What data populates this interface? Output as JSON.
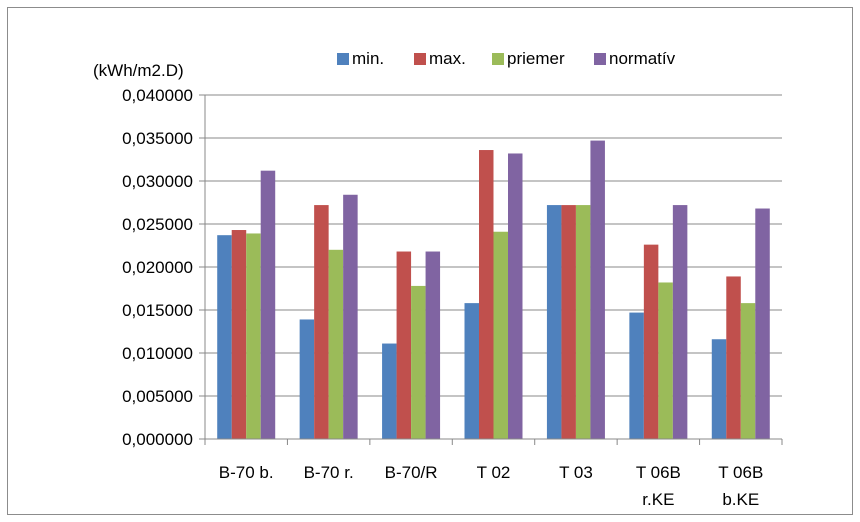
{
  "chart_data": {
    "type": "bar",
    "title": "",
    "xlabel": "",
    "ylabel": "(kWh/m2.D)",
    "ylim": [
      0,
      0.04
    ],
    "yticks": [
      "0,000000",
      "0,005000",
      "0,010000",
      "0,015000",
      "0,020000",
      "0,025000",
      "0,030000",
      "0,035000",
      "0,040000"
    ],
    "grid": true,
    "legend_position": "top",
    "categories": [
      [
        "B-70 b."
      ],
      [
        "B-70 r."
      ],
      [
        "B-70/R"
      ],
      [
        "T 02"
      ],
      [
        "T 03"
      ],
      [
        "T 06B",
        "r.KE"
      ],
      [
        "T 06B",
        "b.KE"
      ]
    ],
    "series": [
      {
        "name": "min.",
        "color": "#4f81bd",
        "values": [
          0.0237,
          0.0139,
          0.0111,
          0.0158,
          0.0272,
          0.0147,
          0.0116
        ]
      },
      {
        "name": "max.",
        "color": "#c0504d",
        "values": [
          0.0243,
          0.0272,
          0.0218,
          0.0336,
          0.0272,
          0.0226,
          0.0189
        ]
      },
      {
        "name": "priemer",
        "color": "#9bbb59",
        "values": [
          0.0239,
          0.022,
          0.0178,
          0.0241,
          0.0272,
          0.0182,
          0.0158
        ]
      },
      {
        "name": "normatív",
        "color": "#8064a2",
        "values": [
          0.0312,
          0.0284,
          0.0218,
          0.0332,
          0.0347,
          0.0272,
          0.0268
        ]
      }
    ]
  }
}
